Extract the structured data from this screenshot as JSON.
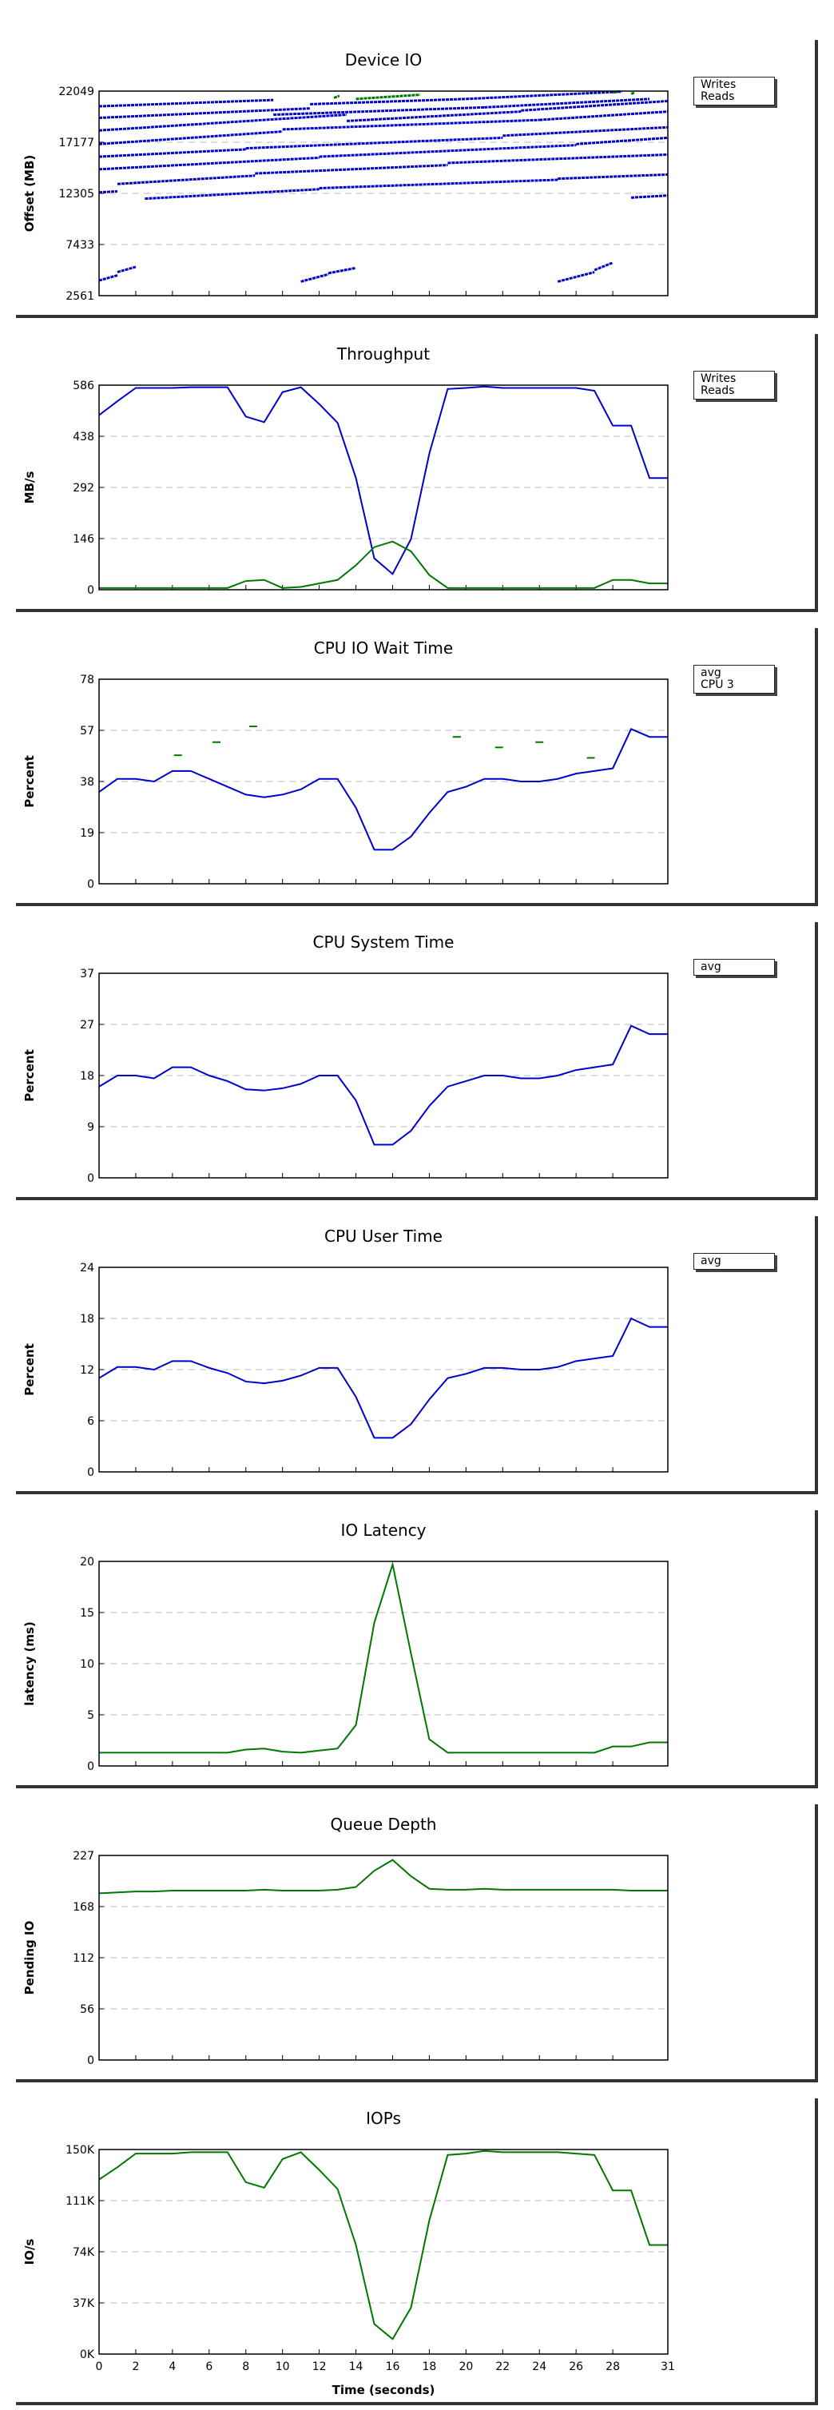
{
  "x_axis": {
    "label": "Time (seconds)",
    "min": 0,
    "max": 31,
    "ticks": [
      0,
      2,
      4,
      6,
      8,
      10,
      12,
      14,
      16,
      18,
      20,
      22,
      24,
      26,
      28,
      31
    ]
  },
  "colors": {
    "blue": "#0000cc",
    "green": "#007700",
    "grid": "#bbbbbb",
    "frame": "#000000"
  },
  "chart_data": [
    {
      "type": "scatter",
      "title": "Device IO",
      "ylabel": "Offset (MB)",
      "ylim": [
        2561,
        22049
      ],
      "yticks": [
        "2561",
        "7433",
        "12305",
        "17177",
        "22049"
      ],
      "legend": [
        "Writes",
        "Reads"
      ],
      "legend_placement": "top-right",
      "series": [
        {
          "name": "Writes",
          "color": "#0000cc",
          "segments": [
            [
              [
                0,
                20600
              ],
              [
                9.5,
                21200
              ]
            ],
            [
              [
                0,
                19500
              ],
              [
                11.5,
                20400
              ]
            ],
            [
              [
                0,
                18300
              ],
              [
                13.5,
                19800
              ]
            ],
            [
              [
                0,
                17000
              ],
              [
                10,
                18200
              ]
            ],
            [
              [
                0,
                15800
              ],
              [
                8,
                16500
              ]
            ],
            [
              [
                0,
                14600
              ],
              [
                12,
                15700
              ]
            ],
            [
              [
                1,
                13200
              ],
              [
                8.5,
                14000
              ]
            ],
            [
              [
                2.5,
                11800
              ],
              [
                12,
                12700
              ]
            ],
            [
              [
                0,
                12400
              ],
              [
                1,
                12500
              ]
            ],
            [
              [
                0,
                4000
              ],
              [
                1,
                4500
              ]
            ],
            [
              [
                1,
                4800
              ],
              [
                2,
                5300
              ]
            ],
            [
              [
                11,
                3900
              ],
              [
                12.5,
                4600
              ]
            ],
            [
              [
                12.5,
                4700
              ],
              [
                14,
                5200
              ]
            ],
            [
              [
                11.5,
                20800
              ],
              [
                20,
                21300
              ]
            ],
            [
              [
                9.5,
                19800
              ],
              [
                21,
                20500
              ]
            ],
            [
              [
                13.5,
                19200
              ],
              [
                23,
                20100
              ]
            ],
            [
              [
                10,
                18400
              ],
              [
                24,
                19300
              ]
            ],
            [
              [
                8,
                16600
              ],
              [
                22,
                17600
              ]
            ],
            [
              [
                12,
                15800
              ],
              [
                26,
                16900
              ]
            ],
            [
              [
                8.5,
                14200
              ],
              [
                19,
                15000
              ]
            ],
            [
              [
                12,
                12800
              ],
              [
                25,
                13600
              ]
            ],
            [
              [
                20,
                21300
              ],
              [
                28.5,
                22000
              ]
            ],
            [
              [
                21,
                20500
              ],
              [
                30,
                21300
              ]
            ],
            [
              [
                23,
                20200
              ],
              [
                31,
                21100
              ]
            ],
            [
              [
                24,
                19300
              ],
              [
                31,
                20100
              ]
            ],
            [
              [
                22,
                17800
              ],
              [
                31,
                18600
              ]
            ],
            [
              [
                26,
                17000
              ],
              [
                31,
                17600
              ]
            ],
            [
              [
                19,
                15200
              ],
              [
                31,
                16000
              ]
            ],
            [
              [
                25,
                13700
              ],
              [
                31,
                14100
              ]
            ],
            [
              [
                29,
                11900
              ],
              [
                31,
                12100
              ]
            ],
            [
              [
                25,
                3900
              ],
              [
                27,
                4800
              ]
            ],
            [
              [
                27,
                5000
              ],
              [
                28,
                5700
              ]
            ]
          ]
        },
        {
          "name": "Reads",
          "color": "#007700",
          "segments": [
            [
              [
                12.8,
                21400
              ],
              [
                13.1,
                21600
              ]
            ],
            [
              [
                14,
                21300
              ],
              [
                17.5,
                21700
              ]
            ],
            [
              [
                28,
                21900
              ],
              [
                28.3,
                22000
              ]
            ],
            [
              [
                29,
                21800
              ],
              [
                29.2,
                21900
              ]
            ]
          ]
        }
      ]
    },
    {
      "type": "line",
      "title": "Throughput",
      "ylabel": "MB/s",
      "ylim": [
        0,
        586
      ],
      "yticks": [
        "0",
        "146",
        "292",
        "438",
        "586"
      ],
      "legend": [
        "Writes",
        "Reads"
      ],
      "legend_placement": "top-right",
      "series": [
        {
          "name": "Writes",
          "color": "#0000cc",
          "x": [
            0,
            1,
            2,
            3,
            4,
            5,
            6,
            7,
            8,
            9,
            10,
            11,
            12,
            13,
            14,
            15,
            16,
            17,
            18,
            19,
            20,
            21,
            22,
            23,
            24,
            25,
            26,
            27,
            28,
            29,
            30,
            31
          ],
          "y": [
            500,
            540,
            578,
            578,
            578,
            580,
            580,
            580,
            496,
            480,
            566,
            580,
            532,
            478,
            320,
            90,
            45,
            145,
            390,
            575,
            578,
            582,
            578,
            578,
            578,
            578,
            578,
            570,
            470,
            470,
            320,
            320
          ]
        },
        {
          "name": "Reads",
          "color": "#007700",
          "x": [
            0,
            1,
            2,
            3,
            4,
            5,
            6,
            7,
            8,
            9,
            10,
            11,
            12,
            13,
            14,
            15,
            16,
            17,
            18,
            19,
            20,
            21,
            22,
            23,
            24,
            25,
            26,
            27,
            28,
            29,
            30,
            31
          ],
          "y": [
            5,
            5,
            5,
            5,
            5,
            5,
            5,
            5,
            25,
            28,
            5,
            8,
            18,
            28,
            70,
            122,
            138,
            110,
            42,
            5,
            5,
            5,
            5,
            5,
            5,
            5,
            5,
            5,
            28,
            28,
            18,
            18
          ]
        }
      ]
    },
    {
      "type": "line",
      "title": "CPU IO Wait Time",
      "ylabel": "Percent",
      "ylim": [
        0,
        78
      ],
      "yticks": [
        "0",
        "19",
        "38",
        "57",
        "78"
      ],
      "legend": [
        "avg",
        "CPU 3"
      ],
      "legend_placement": "top-right",
      "series": [
        {
          "name": "avg",
          "color": "#0000cc",
          "x": [
            0,
            1,
            2,
            3,
            4,
            5,
            6,
            7,
            8,
            9,
            10,
            11,
            12,
            13,
            14,
            15,
            16,
            17,
            18,
            19,
            20,
            21,
            22,
            23,
            24,
            25,
            26,
            27,
            28,
            29,
            30,
            31
          ],
          "y": [
            35,
            40,
            40,
            39,
            43,
            43,
            40,
            37,
            34,
            33,
            34,
            36,
            40,
            40,
            29,
            13,
            13,
            18,
            27,
            35,
            37,
            40,
            40,
            39,
            39,
            40,
            42,
            43,
            44,
            59,
            56,
            56
          ]
        },
        {
          "name": "CPU 3",
          "color": "#007700",
          "style": "dashes",
          "points": [
            [
              4.3,
              49
            ],
            [
              6.4,
              54
            ],
            [
              8.4,
              60
            ],
            [
              19.5,
              56
            ],
            [
              21.8,
              52
            ],
            [
              24,
              54
            ],
            [
              26.8,
              48
            ]
          ]
        }
      ]
    },
    {
      "type": "line",
      "title": "CPU System Time",
      "ylabel": "Percent",
      "ylim": [
        0,
        37
      ],
      "yticks": [
        "0",
        "9",
        "18",
        "27",
        "37"
      ],
      "legend": [
        "avg"
      ],
      "legend_placement": "top-right",
      "series": [
        {
          "name": "avg",
          "color": "#0000cc",
          "x": [
            0,
            1,
            2,
            3,
            4,
            5,
            6,
            7,
            8,
            9,
            10,
            11,
            12,
            13,
            14,
            15,
            16,
            17,
            18,
            19,
            20,
            21,
            22,
            23,
            24,
            25,
            26,
            27,
            28,
            29,
            30,
            31
          ],
          "y": [
            16.5,
            18.5,
            18.5,
            18,
            20,
            20,
            18.5,
            17.5,
            16,
            15.8,
            16.2,
            17,
            18.5,
            18.5,
            14,
            6,
            6,
            8.5,
            13,
            16.5,
            17.5,
            18.5,
            18.5,
            18,
            18,
            18.5,
            19.5,
            20,
            20.5,
            27.5,
            26,
            26
          ]
        }
      ]
    },
    {
      "type": "line",
      "title": "CPU User Time",
      "ylabel": "Percent",
      "ylim": [
        0,
        24
      ],
      "yticks": [
        "0",
        "6",
        "12",
        "18",
        "24"
      ],
      "legend": [
        "avg"
      ],
      "legend_placement": "top-right",
      "series": [
        {
          "name": "avg",
          "color": "#0000cc",
          "x": [
            0,
            1,
            2,
            3,
            4,
            5,
            6,
            7,
            8,
            9,
            10,
            11,
            12,
            13,
            14,
            15,
            16,
            17,
            18,
            19,
            20,
            21,
            22,
            23,
            24,
            25,
            26,
            27,
            28,
            29,
            30,
            31
          ],
          "y": [
            11,
            12.3,
            12.3,
            12,
            13,
            13,
            12.2,
            11.6,
            10.6,
            10.4,
            10.7,
            11.3,
            12.2,
            12.2,
            8.8,
            4,
            4,
            5.6,
            8.5,
            11,
            11.5,
            12.2,
            12.2,
            12,
            12,
            12.3,
            13,
            13.3,
            13.6,
            18,
            17,
            17
          ]
        }
      ]
    },
    {
      "type": "line",
      "title": "IO Latency",
      "ylabel": "latency (ms)",
      "ylim": [
        0,
        20
      ],
      "yticks": [
        "0",
        "5",
        "10",
        "15",
        "20"
      ],
      "series": [
        {
          "color": "#007700",
          "x": [
            0,
            1,
            2,
            3,
            4,
            5,
            6,
            7,
            8,
            9,
            10,
            11,
            12,
            13,
            14,
            15,
            16,
            17,
            18,
            19,
            20,
            21,
            22,
            23,
            24,
            25,
            26,
            27,
            28,
            29,
            30,
            31
          ],
          "y": [
            1.3,
            1.3,
            1.3,
            1.3,
            1.3,
            1.3,
            1.3,
            1.3,
            1.6,
            1.7,
            1.4,
            1.3,
            1.5,
            1.7,
            4,
            14,
            19.7,
            11,
            2.6,
            1.3,
            1.3,
            1.3,
            1.3,
            1.3,
            1.3,
            1.3,
            1.3,
            1.3,
            1.9,
            1.9,
            2.3,
            2.3
          ]
        }
      ]
    },
    {
      "type": "line",
      "title": "Queue Depth",
      "ylabel": "Pending IO",
      "ylim": [
        0,
        227
      ],
      "yticks": [
        "0",
        "56",
        "112",
        "168",
        "227"
      ],
      "series": [
        {
          "color": "#007700",
          "x": [
            0,
            1,
            2,
            3,
            4,
            5,
            6,
            7,
            8,
            9,
            10,
            11,
            12,
            13,
            14,
            15,
            16,
            17,
            18,
            19,
            20,
            21,
            22,
            23,
            24,
            25,
            26,
            27,
            28,
            29,
            30,
            31
          ],
          "y": [
            185,
            186,
            187,
            187,
            188,
            188,
            188,
            188,
            188,
            189,
            188,
            188,
            188,
            189,
            192,
            210,
            222,
            204,
            190,
            189,
            189,
            190,
            189,
            189,
            189,
            189,
            189,
            189,
            189,
            188,
            188,
            188
          ]
        }
      ]
    },
    {
      "type": "line",
      "title": "IOPs",
      "ylabel": "IO/s",
      "ylim": [
        0,
        150000
      ],
      "yticks": [
        "0K",
        "37K",
        "74K",
        "111K",
        "150K"
      ],
      "xlabel": "Time (seconds)",
      "series": [
        {
          "color": "#007700",
          "x": [
            0,
            1,
            2,
            3,
            4,
            5,
            6,
            7,
            8,
            9,
            10,
            11,
            12,
            13,
            14,
            15,
            16,
            17,
            18,
            19,
            20,
            21,
            22,
            23,
            24,
            25,
            26,
            27,
            28,
            29,
            30,
            31
          ],
          "y": [
            128000,
            137000,
            147000,
            147000,
            147000,
            148000,
            148000,
            148000,
            126000,
            122000,
            143000,
            148000,
            135000,
            121000,
            80000,
            22000,
            11000,
            34000,
            98000,
            146000,
            147000,
            149000,
            148000,
            148000,
            148000,
            148000,
            147000,
            146000,
            120000,
            120000,
            80000,
            80000
          ]
        }
      ]
    }
  ]
}
